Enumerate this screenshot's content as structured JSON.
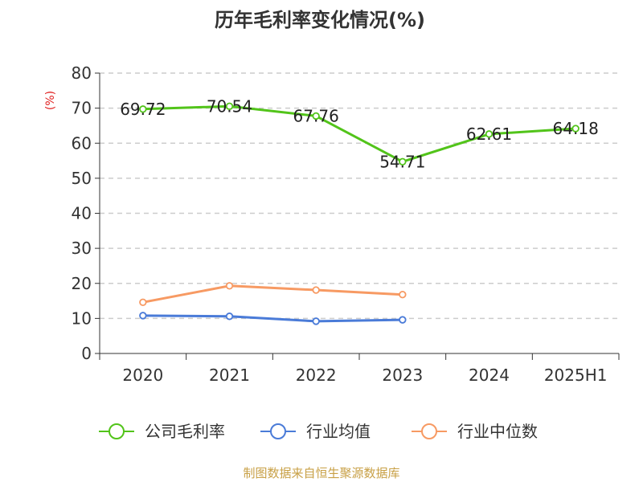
{
  "chart_data": {
    "type": "line",
    "title": "历年毛利率变化情况(%)",
    "ylabel": "(%)",
    "ylim": [
      0,
      80
    ],
    "yticks": [
      0,
      10,
      20,
      30,
      40,
      50,
      60,
      70,
      80
    ],
    "categories": [
      "2020",
      "2021",
      "2022",
      "2023",
      "2024",
      "2025H1"
    ],
    "grid": true,
    "legend_position": "bottom",
    "series": [
      {
        "name": "公司毛利率",
        "color": "#52c41a",
        "values": [
          69.72,
          70.54,
          67.76,
          54.71,
          62.61,
          64.18
        ],
        "labels": [
          "69.72",
          "70.54",
          "67.76",
          "54.71",
          "62.61",
          "64.18"
        ]
      },
      {
        "name": "行业均值",
        "color": "#4a7bd8",
        "values": [
          10.8,
          10.6,
          9.2,
          9.6,
          null,
          null
        ]
      },
      {
        "name": "行业中位数",
        "color": "#f79a63",
        "values": [
          14.6,
          19.3,
          18.1,
          16.8,
          null,
          null
        ]
      }
    ],
    "source": "制图数据来自恒生聚源数据库"
  }
}
